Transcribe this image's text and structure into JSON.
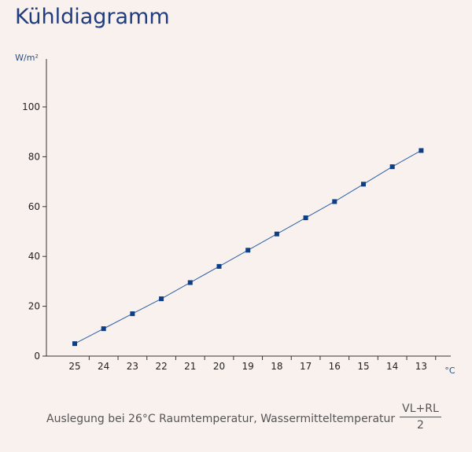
{
  "chart_data": {
    "type": "line",
    "title": "Kühldiagramm",
    "ylabel": "W/m²",
    "xlabel": "°C",
    "ylim": [
      0,
      120
    ],
    "yticks": [
      0,
      20,
      40,
      60,
      80,
      100
    ],
    "categories": [
      "25",
      "24",
      "23",
      "22",
      "21",
      "20",
      "19",
      "18",
      "17",
      "16",
      "15",
      "14",
      "13"
    ],
    "series": [
      {
        "values": [
          5,
          11,
          17,
          23,
          29.5,
          36,
          42.5,
          49,
          55.5,
          62,
          69,
          76,
          82.5
        ]
      }
    ],
    "grid": false,
    "colors": {
      "line": "#2b5fa8",
      "marker": "#0d3f86",
      "axis": "#333333"
    }
  },
  "caption": {
    "text": "Auslegung bei 26°C Raumtemperatur, Wassermitteltemperatur",
    "frac_num": "VL+RL",
    "frac_den": "2"
  }
}
